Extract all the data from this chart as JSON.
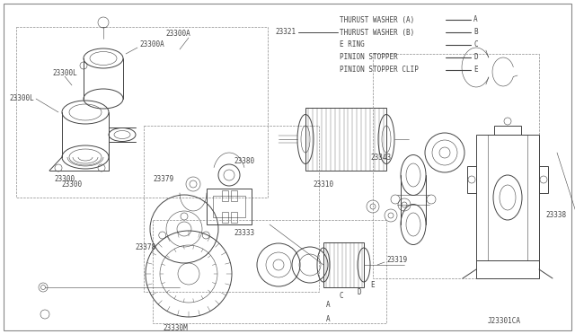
{
  "background_color": "#ffffff",
  "line_color": "#444444",
  "figsize": [
    6.4,
    3.72
  ],
  "dpi": 100,
  "legend_items": [
    {
      "label": "THURUST WASHER (A)",
      "line_style": "-",
      "code": "A"
    },
    {
      "label": "THURUST WASHER (B)",
      "line_style": "-",
      "code": "B"
    },
    {
      "label": "E RING",
      "line_style": "-",
      "code": "C"
    },
    {
      "label": "PINION STOPPER",
      "line_style": "-",
      "code": "D"
    },
    {
      "label": "PINION STOPPER CLIP",
      "line_style": "-",
      "code": "E"
    }
  ],
  "font_size": 5.5,
  "label_color": "#222222",
  "footer_text": "J23301CA"
}
